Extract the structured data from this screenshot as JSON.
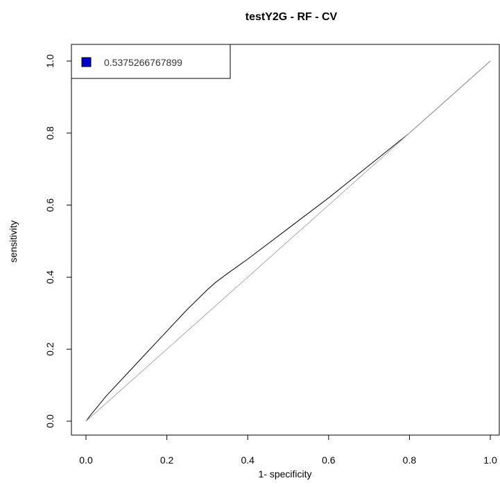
{
  "chart_data": {
    "type": "line",
    "title": "testY2G  - RF - CV",
    "xlabel": "1- specificity",
    "ylabel": "sensitivity",
    "xlim": [
      0,
      1
    ],
    "ylim": [
      0,
      1
    ],
    "x_ticks": [
      "0.0",
      "0.2",
      "0.4",
      "0.6",
      "0.8",
      "1.0"
    ],
    "y_ticks": [
      "0.0",
      "0.2",
      "0.4",
      "0.6",
      "0.8",
      "1.0"
    ],
    "legend": {
      "position": "top-left",
      "label": "0.5375266767899",
      "swatch_color": "#0000cc"
    },
    "grid": false,
    "series": [
      {
        "color": "#000000",
        "x": [
          0.0,
          0.01,
          0.05,
          0.1,
          0.15,
          0.2,
          0.25,
          0.3,
          0.32,
          0.35,
          0.4,
          0.5,
          0.6,
          0.7,
          0.8,
          0.9,
          1.0
        ],
        "y": [
          0.0,
          0.015,
          0.07,
          0.13,
          0.19,
          0.25,
          0.31,
          0.365,
          0.385,
          0.41,
          0.45,
          0.535,
          0.62,
          0.71,
          0.8,
          0.9,
          1.0
        ]
      },
      {
        "color": "#aaaaaa",
        "x": [
          0.0,
          1.0
        ],
        "y": [
          0.0,
          1.0
        ]
      }
    ]
  }
}
